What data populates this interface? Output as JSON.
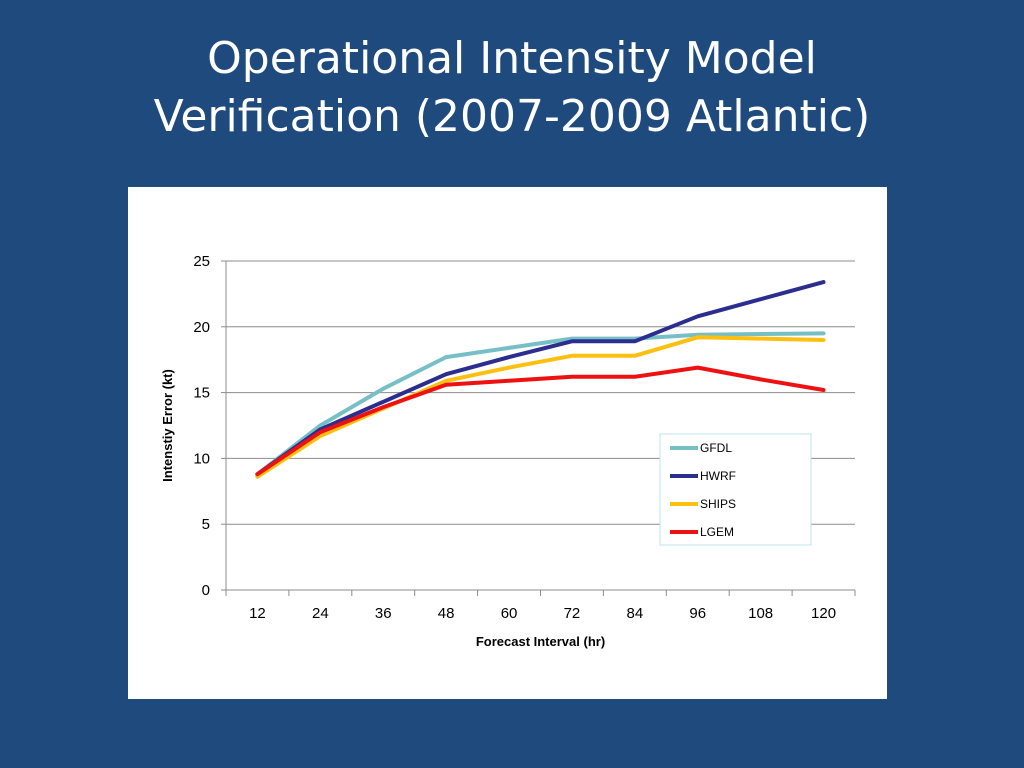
{
  "slide": {
    "title_line1": "Operational Intensity Model",
    "title_line2": "Verification (2007-2009 Atlantic)"
  },
  "chart_data": {
    "type": "line",
    "title": "",
    "xlabel": "Forecast Interval (hr)",
    "ylabel": "Intenstiy Error (kt)",
    "categories": [
      "12",
      "24",
      "36",
      "48",
      "60",
      "72",
      "84",
      "96",
      "108",
      "120"
    ],
    "yticks": [
      "0",
      "5",
      "10",
      "15",
      "20",
      "25"
    ],
    "ylim": [
      0,
      25
    ],
    "grid": true,
    "legend_position": "right",
    "series": [
      {
        "name": "GFDL",
        "color": "#77bfc6",
        "values": [
          8.8,
          12.5,
          15.3,
          17.7,
          18.4,
          19.1,
          19.1,
          19.4,
          19.45,
          19.5
        ]
      },
      {
        "name": "HWRF",
        "color": "#2b2d8f",
        "values": [
          8.8,
          12.2,
          14.3,
          16.4,
          17.7,
          18.9,
          18.9,
          20.8,
          22.1,
          23.4
        ]
      },
      {
        "name": "SHIPS",
        "color": "#fdc010",
        "values": [
          8.6,
          11.7,
          13.8,
          15.9,
          16.9,
          17.8,
          17.8,
          19.2,
          19.1,
          19.0
        ]
      },
      {
        "name": "LGEM",
        "color": "#ed1111",
        "values": [
          8.8,
          12.0,
          13.9,
          15.6,
          15.9,
          16.2,
          16.2,
          16.9,
          16.0,
          15.2
        ]
      }
    ]
  }
}
